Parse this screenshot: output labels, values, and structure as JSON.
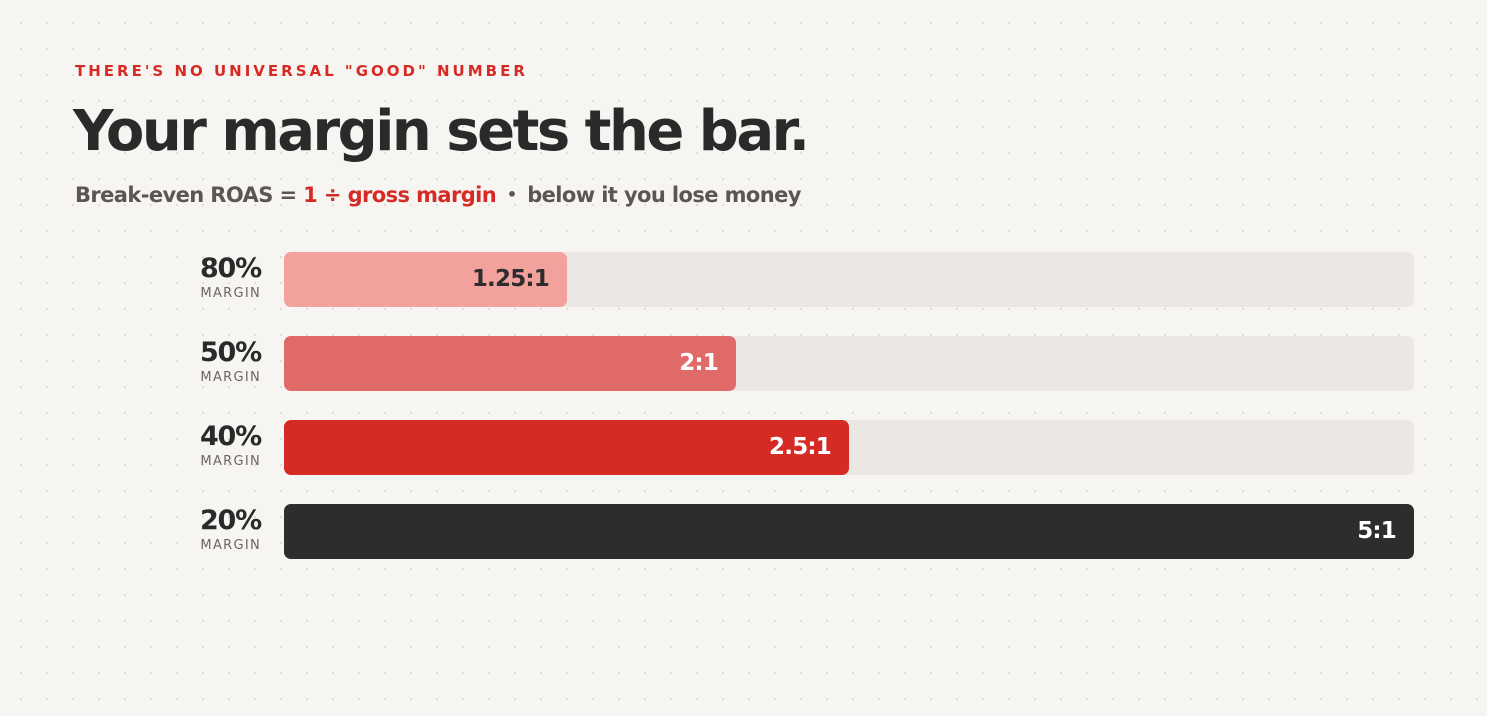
{
  "eyebrow": "THERE'S NO UNIVERSAL \"GOOD\" NUMBER",
  "headline": "Your margin sets the bar.",
  "subline": {
    "lead": "Break-even ROAS = ",
    "formula": "1 ÷ gross margin",
    "separator": "•",
    "tail": "below it you lose money"
  },
  "colors": {
    "accent": "#d62b25",
    "track": "#ebe8e4",
    "background": "#f7f5f2"
  },
  "chart_data": {
    "type": "bar",
    "orientation": "horizontal",
    "categories": [
      "80%",
      "50%",
      "40%",
      "20%"
    ],
    "category_unit": "MARGIN",
    "values": [
      1.25,
      2,
      2.5,
      5
    ],
    "value_labels": [
      "1.25:1",
      "2:1",
      "2.5:1",
      "5:1"
    ],
    "xlim": [
      0,
      5
    ],
    "bar_colors": [
      "#f2a19d",
      "#e06a67",
      "#d62b25",
      "#2d2d2d"
    ],
    "label_colors": [
      "#2d2d2d",
      "#ffffff",
      "#ffffff",
      "#ffffff"
    ],
    "grid": false
  }
}
